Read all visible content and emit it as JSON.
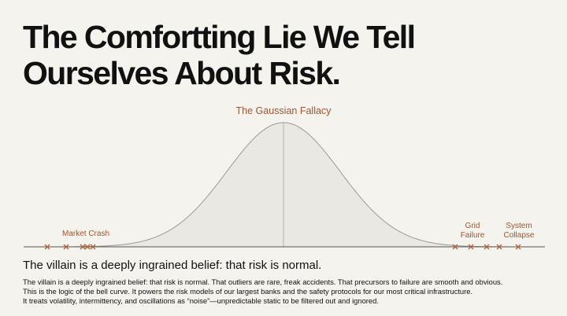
{
  "slide": {
    "title_lines": [
      "The Comfortting Lie We Tell",
      "Ourselves About Risk."
    ],
    "curve_label": "The Gaussian Fallacy",
    "left_label": "Market Crash",
    "right_labels": [
      [
        "Grid",
        "Failure"
      ],
      [
        "System",
        "Collapse"
      ]
    ],
    "subtitle": "The villain is a deeply ingrained belief: that risk is normal.",
    "body_lines": [
      "The villain is a deeply ingrained belief: that risk is normal. That outliers are rare, freak accidents. That precursors to failure are smooth and obvious.",
      "This is the logic of the bell curve. It powers the risk models of our largest banks and the safety protocols for our most critical infrastructure.",
      "It treats volatility, intermittency, and oscillations as “noise”—unpredictable static to be filtered out and ignored."
    ]
  }
}
